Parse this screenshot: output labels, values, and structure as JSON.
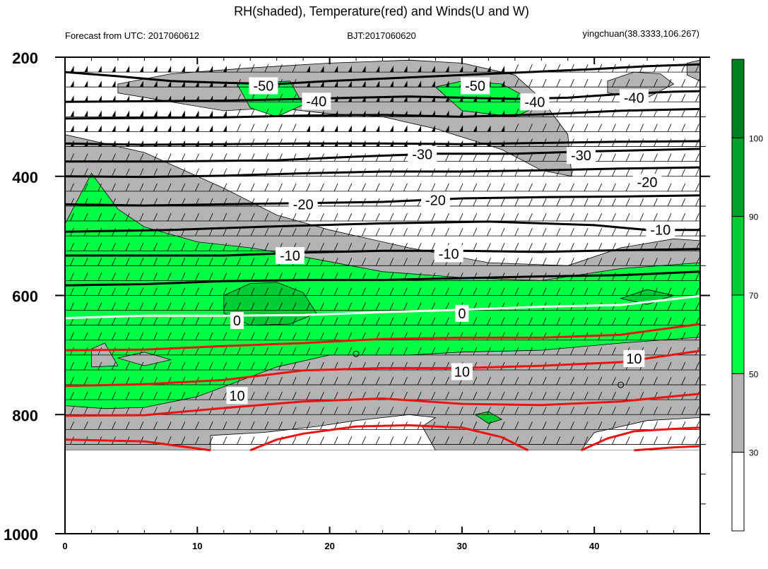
{
  "chart_data": {
    "type": "heatmap",
    "title": "RH(shaded), Temperature(red) and Winds(U and W)",
    "left_subtitle": "Forecast from UTC: 2017060612",
    "center_subtitle": "BJT:2017060620",
    "right_subtitle": "yingchuan(38.3333,106.267)",
    "xlim": [
      0,
      48
    ],
    "ylim": [
      1000,
      200
    ],
    "x_ticks": [
      0,
      10,
      20,
      30,
      40
    ],
    "y_ticks": [
      200,
      400,
      600,
      800,
      1000
    ],
    "colorbar": {
      "levels": [
        30,
        50,
        70,
        90,
        100
      ],
      "colors": [
        "#ffffff",
        "#b3b3b3",
        "#00ff44",
        "#00cc33",
        "#00a02a",
        "#00801e"
      ]
    },
    "wind_levels": [
      225,
      250,
      275,
      300,
      325,
      350,
      375,
      400,
      425,
      450,
      475,
      500,
      525,
      550,
      575,
      600,
      625,
      650,
      675,
      700,
      725,
      750,
      775,
      800,
      825,
      850
    ],
    "isotherms": [
      {
        "label": "-50",
        "color": "#000000",
        "points": [
          [
            0,
            225
          ],
          [
            4,
            232
          ],
          [
            8,
            240
          ],
          [
            12,
            243
          ],
          [
            16,
            245
          ],
          [
            20,
            240
          ],
          [
            24,
            236
          ],
          [
            28,
            232
          ],
          [
            32,
            228
          ],
          [
            36,
            224
          ],
          [
            40,
            220
          ],
          [
            44,
            215
          ],
          [
            48,
            212
          ]
        ]
      },
      {
        "label": "-40",
        "color": "#000000",
        "points": [
          [
            0,
            275
          ],
          [
            6,
            274
          ],
          [
            12,
            273
          ],
          [
            18,
            270
          ],
          [
            22,
            268
          ],
          [
            26,
            266
          ],
          [
            30,
            268
          ],
          [
            34,
            270
          ],
          [
            38,
            268
          ],
          [
            42,
            262
          ],
          [
            46,
            258
          ],
          [
            48,
            257
          ]
        ]
      },
      {
        "label": "-30",
        "color": "#000000",
        "points": [
          [
            0,
            303
          ],
          [
            6,
            302
          ],
          [
            12,
            301
          ],
          [
            18,
            298
          ],
          [
            24,
            297
          ],
          [
            30,
            300
          ],
          [
            36,
            296
          ],
          [
            42,
            290
          ],
          [
            48,
            287
          ]
        ]
      },
      {
        "label": "-20",
        "color": "#000000",
        "points": [
          [
            0,
            345
          ],
          [
            6,
            347
          ],
          [
            12,
            346
          ],
          [
            18,
            345
          ],
          [
            24,
            345
          ],
          [
            30,
            346
          ],
          [
            36,
            344
          ],
          [
            42,
            342
          ],
          [
            48,
            341
          ]
        ]
      },
      {
        "label": "-30",
        "color": "#000000",
        "points": [
          [
            0,
            375
          ],
          [
            8,
            375
          ],
          [
            16,
            373
          ],
          [
            22,
            367
          ],
          [
            28,
            362
          ],
          [
            34,
            362
          ],
          [
            40,
            358
          ],
          [
            46,
            355
          ],
          [
            48,
            354
          ]
        ]
      },
      {
        "label": "-30",
        "color": "#000000",
        "points": [
          [
            0,
            400
          ],
          [
            6,
            401
          ],
          [
            12,
            399
          ],
          [
            18,
            395
          ],
          [
            24,
            392
          ],
          [
            30,
            392
          ],
          [
            36,
            390
          ],
          [
            42,
            387
          ],
          [
            48,
            385
          ]
        ]
      },
      {
        "label": "-20",
        "color": "#000000",
        "points": [
          [
            0,
            447
          ],
          [
            6,
            449
          ],
          [
            12,
            447
          ],
          [
            18,
            445
          ],
          [
            24,
            443
          ],
          [
            30,
            437
          ],
          [
            36,
            435
          ],
          [
            42,
            434
          ],
          [
            48,
            432
          ]
        ]
      },
      {
        "label": "-10",
        "color": "#000000",
        "points": [
          [
            0,
            493
          ],
          [
            8,
            490
          ],
          [
            16,
            484
          ],
          [
            24,
            479
          ],
          [
            32,
            476
          ],
          [
            40,
            482
          ],
          [
            44,
            490
          ],
          [
            48,
            490
          ]
        ]
      },
      {
        "label": "-10",
        "color": "#000000",
        "points": [
          [
            0,
            533
          ],
          [
            6,
            533
          ],
          [
            12,
            533
          ],
          [
            18,
            528
          ],
          [
            24,
            525
          ],
          [
            30,
            525
          ],
          [
            36,
            527
          ],
          [
            42,
            524
          ],
          [
            48,
            522
          ]
        ]
      },
      {
        "label": "-10",
        "color": "#000000",
        "points": [
          [
            0,
            583
          ],
          [
            6,
            581
          ],
          [
            12,
            576
          ],
          [
            18,
            574
          ],
          [
            24,
            574
          ],
          [
            30,
            571
          ],
          [
            36,
            568
          ],
          [
            42,
            566
          ],
          [
            48,
            560
          ]
        ]
      },
      {
        "label": "0",
        "color": "#ffffff",
        "points": [
          [
            0,
            638
          ],
          [
            6,
            634
          ],
          [
            12,
            634
          ],
          [
            18,
            633
          ],
          [
            24,
            628
          ],
          [
            30,
            624
          ],
          [
            36,
            619
          ],
          [
            42,
            616
          ],
          [
            48,
            601
          ]
        ]
      },
      {
        "label": "",
        "color": "#ee1111",
        "points": [
          [
            0,
            692
          ],
          [
            6,
            691
          ],
          [
            12,
            685
          ],
          [
            18,
            680
          ],
          [
            24,
            673
          ],
          [
            30,
            671
          ],
          [
            36,
            671
          ],
          [
            42,
            666
          ],
          [
            48,
            648
          ]
        ]
      },
      {
        "label": "10",
        "color": "#ee1111",
        "points": [
          [
            0,
            752
          ],
          [
            6,
            749
          ],
          [
            12,
            742
          ],
          [
            18,
            726
          ],
          [
            24,
            722
          ],
          [
            30,
            722
          ],
          [
            36,
            718
          ],
          [
            42,
            712
          ],
          [
            48,
            693
          ]
        ]
      },
      {
        "label": "",
        "color": "#ee1111",
        "points": [
          [
            0,
            802
          ],
          [
            6,
            801
          ],
          [
            12,
            789
          ],
          [
            18,
            778
          ],
          [
            24,
            773
          ],
          [
            30,
            782
          ],
          [
            36,
            784
          ],
          [
            42,
            778
          ],
          [
            48,
            765
          ]
        ]
      },
      {
        "label": "",
        "color": "#ee1111",
        "points": [
          [
            0,
            842
          ],
          [
            6,
            845
          ],
          [
            11,
            860
          ]
        ]
      },
      {
        "label": "",
        "color": "#ee1111",
        "points": [
          [
            14,
            860
          ],
          [
            16,
            842
          ],
          [
            18,
            832
          ],
          [
            22,
            820
          ],
          [
            26,
            818
          ],
          [
            30,
            822
          ],
          [
            33,
            838
          ],
          [
            35,
            860
          ]
        ]
      },
      {
        "label": "",
        "color": "#ee1111",
        "points": [
          [
            39,
            860
          ],
          [
            41,
            840
          ],
          [
            43,
            828
          ],
          [
            46,
            824
          ],
          [
            48,
            822
          ]
        ]
      },
      {
        "label": "",
        "color": "#ee1111",
        "points": [
          [
            43,
            860
          ],
          [
            46,
            855
          ],
          [
            48,
            853
          ]
        ]
      }
    ],
    "isotherm_labels": [
      {
        "text": "-50",
        "x": 15,
        "y": 248,
        "color": "#000000"
      },
      {
        "text": "-50",
        "x": 31,
        "y": 248,
        "color": "#000000"
      },
      {
        "text": "-40",
        "x": 19,
        "y": 274,
        "color": "#000000"
      },
      {
        "text": "-40",
        "x": 35.5,
        "y": 275,
        "color": "#000000"
      },
      {
        "text": "-40",
        "x": 43,
        "y": 268,
        "color": "#000000"
      },
      {
        "text": "-30",
        "x": 27,
        "y": 363,
        "color": "#000000"
      },
      {
        "text": "-30",
        "x": 39,
        "y": 365,
        "color": "#000000"
      },
      {
        "text": "-20",
        "x": 18,
        "y": 447,
        "color": "#000000"
      },
      {
        "text": "-20",
        "x": 28,
        "y": 440,
        "color": "#000000"
      },
      {
        "text": "-20",
        "x": 44,
        "y": 410,
        "color": "#000000"
      },
      {
        "text": "-10",
        "x": 17,
        "y": 533,
        "color": "#000000"
      },
      {
        "text": "-10",
        "x": 29,
        "y": 530,
        "color": "#000000"
      },
      {
        "text": "-10",
        "x": 45,
        "y": 490,
        "color": "#000000"
      },
      {
        "text": "0",
        "x": 13,
        "y": 642,
        "color": "#000000"
      },
      {
        "text": "0",
        "x": 30,
        "y": 630,
        "color": "#000000"
      },
      {
        "text": "10",
        "x": 13,
        "y": 768,
        "color": "#000000"
      },
      {
        "text": "10",
        "x": 30,
        "y": 728,
        "color": "#000000"
      },
      {
        "text": "10",
        "x": 43,
        "y": 706,
        "color": "#000000"
      }
    ]
  }
}
